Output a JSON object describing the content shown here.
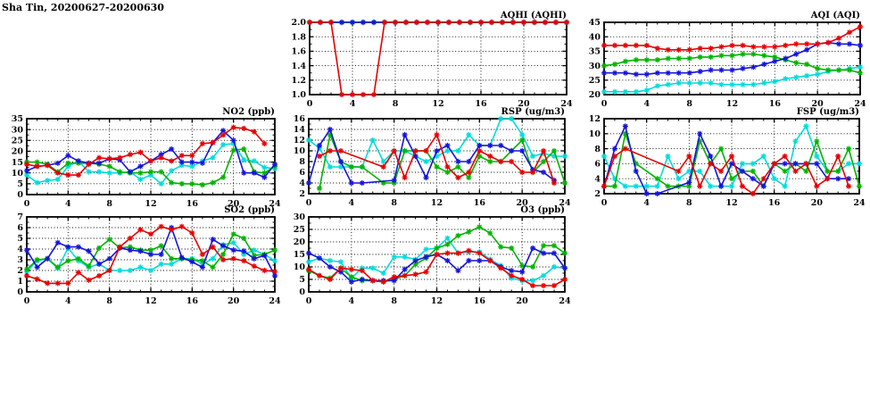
{
  "title": "Sha Tin, 20200627-20200630",
  "colors": {
    "red": "#e60000",
    "blue": "#1414dc",
    "green": "#00b400",
    "cyan": "#00dcdc",
    "axis": "#000000",
    "grid": "#000000",
    "background": "#ffffff"
  },
  "chart_data": [
    {
      "id": "aqhi",
      "title": "AQHI (AQHI)",
      "type": "line",
      "xlim": [
        0,
        24
      ],
      "x_major_ticks": [
        0,
        4,
        8,
        12,
        16,
        20,
        24
      ],
      "x_minor_step": 1,
      "ylim": [
        1.0,
        2.0
      ],
      "y_ticks": [
        1.0,
        1.2,
        1.4,
        1.6,
        1.8,
        2.0
      ],
      "y_decimals": 1,
      "grid": true,
      "legend": "none",
      "series": [
        {
          "name": "series-cyan",
          "color": "cyan",
          "values": [
            2,
            2,
            2,
            2,
            2,
            2,
            2,
            2,
            2,
            2,
            2,
            2,
            2,
            2,
            2,
            2,
            2,
            2,
            2,
            2,
            2,
            2,
            2,
            2,
            2
          ]
        },
        {
          "name": "series-green",
          "color": "green",
          "values": [
            2,
            2,
            2,
            2,
            2,
            2,
            2,
            2,
            2,
            2,
            2,
            2,
            2,
            2,
            2,
            2,
            2,
            2,
            2,
            2,
            2,
            2,
            2,
            2,
            2
          ]
        },
        {
          "name": "series-blue",
          "color": "blue",
          "values": [
            2,
            2,
            2,
            2,
            2,
            2,
            2,
            2,
            2,
            2,
            2,
            2,
            2,
            2,
            2,
            2,
            2,
            2,
            2,
            2,
            2,
            2,
            2,
            2,
            2
          ]
        },
        {
          "name": "series-red",
          "color": "red",
          "values": [
            2,
            2,
            2,
            1,
            1,
            1,
            1,
            2,
            2,
            2,
            2,
            2,
            2,
            2,
            2,
            2,
            2,
            2,
            2,
            2,
            2,
            2,
            2,
            2,
            2
          ]
        }
      ]
    },
    {
      "id": "aqi",
      "title": "AQI (AQI)",
      "type": "line",
      "xlim": [
        0,
        24
      ],
      "x_major_ticks": [
        0,
        4,
        8,
        12,
        16,
        20,
        24
      ],
      "x_minor_step": 1,
      "ylim": [
        20,
        45
      ],
      "y_ticks": [
        20,
        25,
        30,
        35,
        40,
        45
      ],
      "y_decimals": 0,
      "grid": true,
      "legend": "none",
      "series": [
        {
          "name": "series-cyan",
          "color": "cyan",
          "values": [
            21,
            21,
            21,
            21,
            21.5,
            23,
            23.5,
            24,
            24,
            24,
            24,
            23.5,
            23.5,
            23.5,
            23.5,
            24,
            24.5,
            25.5,
            26,
            26.5,
            27,
            28,
            28.5,
            29,
            29.5
          ]
        },
        {
          "name": "series-green",
          "color": "green",
          "values": [
            30,
            30.5,
            31.5,
            32,
            32,
            32,
            32.5,
            32.5,
            32.5,
            33,
            33,
            33.5,
            33.5,
            34,
            34,
            33.5,
            33,
            32,
            31,
            30.5,
            29,
            28.5,
            28.5,
            28.5,
            27.5
          ]
        },
        {
          "name": "series-blue",
          "color": "blue",
          "values": [
            27.5,
            27.5,
            27.5,
            27,
            27,
            27.5,
            27.5,
            27.5,
            27.5,
            28,
            28.5,
            28.5,
            28.5,
            29,
            29.5,
            30.5,
            31.5,
            32.5,
            34,
            35.5,
            37.5,
            38,
            37.5,
            37.5,
            37
          ]
        },
        {
          "name": "series-red",
          "color": "red",
          "values": [
            37,
            37,
            37,
            37,
            37,
            36,
            35.5,
            35.5,
            35.5,
            36,
            36,
            36.5,
            37,
            37,
            36.5,
            36.5,
            36.5,
            37,
            37.5,
            37.5,
            37.5,
            38,
            39.5,
            41.5,
            43.5
          ]
        }
      ]
    },
    {
      "id": "no2",
      "title": "NO2 (ppb)",
      "type": "line",
      "xlim": [
        0,
        24
      ],
      "x_major_ticks": [
        0,
        4,
        8,
        12,
        16,
        20,
        24
      ],
      "x_minor_step": 1,
      "ylim": [
        0,
        35
      ],
      "y_ticks": [
        0,
        5,
        10,
        15,
        20,
        25,
        30,
        35
      ],
      "y_decimals": 0,
      "grid": true,
      "legend": "none",
      "series": [
        {
          "name": "series-cyan",
          "color": "cyan",
          "values": [
            9,
            5.5,
            6.5,
            7,
            13,
            15.5,
            10.5,
            10.5,
            10,
            10,
            10.5,
            7,
            9,
            5,
            11,
            13.5,
            13,
            15.5,
            17,
            23,
            23.5,
            16,
            15.5,
            12.5,
            12
          ]
        },
        {
          "name": "series-green",
          "color": "green",
          "values": [
            15,
            15,
            14,
            10.5,
            14.5,
            14.5,
            14.5,
            14,
            13,
            10.5,
            10,
            10,
            10.5,
            10.5,
            5.5,
            5,
            5,
            4.5,
            5.5,
            8,
            20.5,
            21,
            10.5,
            10,
            13
          ]
        },
        {
          "name": "series-blue",
          "color": "blue",
          "values": [
            11,
            13,
            13.5,
            14.5,
            18,
            15.5,
            14.5,
            14.5,
            16.5,
            16,
            10.5,
            13,
            15.5,
            18.5,
            21,
            15,
            15,
            14.5,
            24,
            29.5,
            25,
            10,
            10,
            8,
            14
          ]
        },
        {
          "name": "series-red",
          "color": "red",
          "values": [
            14,
            13,
            13.5,
            10,
            9,
            9,
            14,
            17,
            16.5,
            17,
            18.5,
            19.5,
            15.5,
            17,
            15.5,
            18,
            18,
            23.5,
            24,
            27.5,
            31,
            30.5,
            29,
            23.5,
            null
          ]
        }
      ]
    },
    {
      "id": "rsp",
      "title": "RSP (ug/m3)",
      "type": "line",
      "xlim": [
        0,
        24
      ],
      "x_major_ticks": [
        0,
        4,
        8,
        12,
        16,
        20,
        24
      ],
      "x_minor_step": 1,
      "ylim": [
        2,
        16
      ],
      "y_ticks": [
        2,
        4,
        6,
        8,
        10,
        12,
        14,
        16
      ],
      "y_decimals": 0,
      "grid": true,
      "legend": "none",
      "series": [
        {
          "name": "series-cyan",
          "color": "cyan",
          "values": [
            12,
            10.5,
            7,
            7,
            7,
            7,
            12,
            8,
            10,
            10,
            9,
            8,
            9,
            10,
            10,
            13,
            11,
            11,
            16,
            16,
            13,
            9,
            9.5,
            9,
            9
          ]
        },
        {
          "name": "series-green",
          "color": "green",
          "values": [
            null,
            3,
            13,
            8,
            7,
            7,
            null,
            4,
            4,
            10,
            10,
            10,
            7,
            6,
            7,
            5,
            9,
            8,
            8,
            10,
            12,
            6,
            8,
            10,
            4
          ]
        },
        {
          "name": "series-blue",
          "color": "blue",
          "values": [
            4,
            11,
            14,
            8,
            4,
            4,
            null,
            null,
            4.5,
            13,
            9,
            5,
            10,
            11,
            8,
            8,
            11,
            11,
            11,
            10,
            10,
            6.5,
            6,
            4.5,
            null
          ]
        },
        {
          "name": "series-red",
          "color": "red",
          "values": [
            null,
            9,
            10,
            10,
            null,
            null,
            null,
            7,
            10,
            5,
            10,
            10,
            13,
            7,
            5,
            6,
            10,
            9,
            8,
            8,
            6,
            6,
            10,
            4,
            null
          ]
        }
      ]
    },
    {
      "id": "fsp",
      "title": "FSP (ug/m3)",
      "type": "line",
      "xlim": [
        0,
        24
      ],
      "x_major_ticks": [
        0,
        4,
        8,
        12,
        16,
        20,
        24
      ],
      "x_minor_step": 1,
      "ylim": [
        2,
        12
      ],
      "y_ticks": [
        2,
        4,
        6,
        8,
        10,
        12
      ],
      "y_decimals": 0,
      "grid": true,
      "legend": "none",
      "series": [
        {
          "name": "series-cyan",
          "color": "cyan",
          "values": [
            7,
            4,
            3,
            3,
            3,
            3,
            7,
            4,
            5,
            5,
            3,
            3,
            3,
            6,
            6,
            7,
            4,
            3,
            9,
            11,
            7,
            5,
            5,
            6,
            6
          ]
        },
        {
          "name": "series-green",
          "color": "green",
          "values": [
            3,
            3,
            10,
            6,
            null,
            4,
            3,
            3,
            3,
            9,
            6,
            8,
            4,
            5,
            5,
            3,
            6,
            5,
            6,
            5,
            9,
            5,
            5,
            8,
            3
          ]
        },
        {
          "name": "series-blue",
          "color": "blue",
          "values": [
            3,
            8,
            11,
            5,
            2,
            2,
            null,
            null,
            3.5,
            10,
            7,
            3,
            6,
            5,
            4,
            3,
            6,
            6,
            6,
            6,
            6,
            4,
            4,
            4,
            null
          ]
        },
        {
          "name": "series-red",
          "color": "red",
          "values": [
            3,
            7,
            8,
            null,
            null,
            null,
            null,
            5,
            7,
            3,
            6,
            5,
            7,
            3,
            2,
            4,
            6,
            7,
            5,
            6,
            3,
            4,
            7,
            3,
            null
          ]
        }
      ]
    },
    {
      "id": "so2",
      "title": "SO2 (ppb)",
      "type": "line",
      "xlim": [
        0,
        24
      ],
      "x_major_ticks": [
        0,
        4,
        8,
        12,
        16,
        20,
        24
      ],
      "x_minor_step": 1,
      "ylim": [
        0,
        7
      ],
      "y_ticks": [
        0,
        1,
        2,
        3,
        4,
        5,
        6,
        7
      ],
      "y_decimals": 0,
      "grid": true,
      "legend": "none",
      "series": [
        {
          "name": "series-cyan",
          "color": "cyan",
          "values": [
            1.9,
            2.9,
            3.1,
            2.2,
            4.1,
            2.9,
            2.3,
            2.6,
            2,
            2,
            2,
            2.3,
            2,
            2.6,
            2.6,
            3.1,
            3.1,
            2.6,
            3.1,
            4.4,
            4.6,
            3.5,
            3.9,
            3.5,
            2.9
          ]
        },
        {
          "name": "series-green",
          "color": "green",
          "values": [
            2.1,
            3,
            3.1,
            2.3,
            2.9,
            3.1,
            2.4,
            4.1,
            4.9,
            4.1,
            4.2,
            3.9,
            3.9,
            4.3,
            3.1,
            3.1,
            3,
            2.9,
            2.3,
            3.5,
            5.4,
            5,
            3.4,
            3.5,
            3.9
          ]
        },
        {
          "name": "series-blue",
          "color": "blue",
          "values": [
            3.9,
            2.3,
            3.1,
            4.6,
            4.2,
            4.2,
            3.8,
            2.6,
            3.1,
            4.1,
            3.9,
            3.8,
            3.5,
            3.5,
            6,
            3.2,
            2.8,
            2.3,
            4.9,
            4.3,
            3.9,
            3.8,
            3.1,
            3.4,
            1.5
          ]
        },
        {
          "name": "series-red",
          "color": "red",
          "values": [
            1.5,
            1.2,
            0.8,
            0.8,
            0.8,
            1.8,
            1.1,
            1.5,
            2,
            4.2,
            5,
            5.8,
            5.4,
            6.1,
            5.8,
            6.1,
            5.5,
            3.5,
            4.2,
            3,
            3.1,
            2.9,
            2.4,
            2,
            1.9
          ]
        }
      ]
    },
    {
      "id": "o3",
      "title": "O3 (ppb)",
      "type": "line",
      "xlim": [
        0,
        24
      ],
      "x_major_ticks": [
        0,
        4,
        8,
        12,
        16,
        20,
        24
      ],
      "x_minor_step": 1,
      "ylim": [
        0,
        30
      ],
      "y_ticks": [
        0,
        5,
        10,
        15,
        20,
        25,
        30
      ],
      "y_decimals": 0,
      "grid": true,
      "legend": "none",
      "series": [
        {
          "name": "series-cyan",
          "color": "cyan",
          "values": [
            12,
            13.5,
            12.5,
            12,
            5.5,
            9.5,
            9.5,
            7.5,
            14,
            14,
            13,
            17,
            17.5,
            21.5,
            15.5,
            16,
            16,
            13,
            10.5,
            5.5,
            4.5,
            4.5,
            6.5,
            10,
            9.5
          ]
        },
        {
          "name": "series-green",
          "color": "green",
          "values": [
            8.5,
            6.5,
            5.5,
            9.5,
            6,
            4.5,
            4.5,
            4,
            5,
            6.5,
            11,
            13.5,
            17.5,
            19,
            22.5,
            24,
            26,
            23.5,
            18,
            17.5,
            10.5,
            10,
            18.5,
            18.5,
            15.5
          ]
        },
        {
          "name": "series-blue",
          "color": "blue",
          "values": [
            15.5,
            13.5,
            10,
            8,
            4,
            5,
            4.5,
            4.5,
            4.5,
            9,
            12.5,
            14,
            15,
            12.5,
            8.5,
            12.5,
            12.5,
            12.5,
            10,
            8.5,
            8,
            17.5,
            15.5,
            15.5,
            9.5
          ]
        },
        {
          "name": "series-red",
          "color": "red",
          "values": [
            9,
            6.5,
            5,
            9.5,
            9,
            8.5,
            4.5,
            4,
            6,
            6.5,
            7,
            8,
            15,
            15.5,
            15.5,
            16.5,
            15.5,
            12.5,
            9.5,
            6.5,
            5,
            2.5,
            2.5,
            2.5,
            5
          ]
        }
      ]
    }
  ]
}
